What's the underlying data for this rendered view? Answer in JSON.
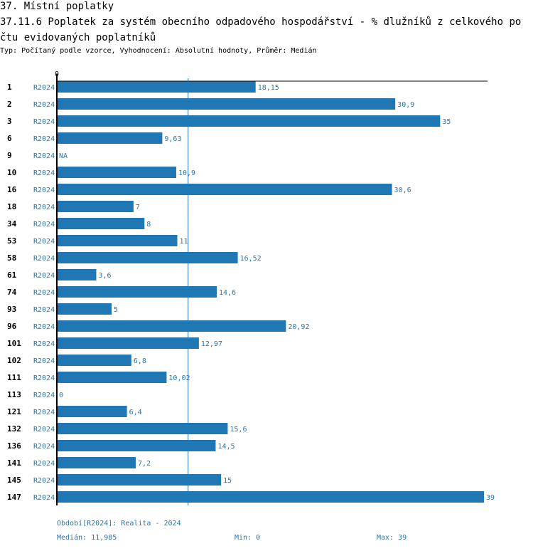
{
  "header": {
    "section": "37. Místní poplatky",
    "title": "37.11.6 Poplatek za systém obecního odpadového hospodářství  - % dlužníků z celkového počtu evidovaných poplatníků",
    "subtitle": "Typ: Počítaný podle vzorce, Vyhodnocení: Absolutní hodnoty, Průměr: Medián"
  },
  "chart_data": {
    "type": "bar",
    "orientation": "horizontal",
    "categories": [
      "1",
      "2",
      "3",
      "6",
      "9",
      "10",
      "16",
      "18",
      "34",
      "53",
      "58",
      "61",
      "74",
      "93",
      "96",
      "101",
      "102",
      "111",
      "113",
      "121",
      "132",
      "136",
      "141",
      "145",
      "147"
    ],
    "period": "R2024",
    "values": [
      18.15,
      30.9,
      35,
      9.63,
      null,
      10.9,
      30.6,
      7,
      8,
      11,
      16.52,
      3.6,
      14.6,
      5,
      20.92,
      12.97,
      6.8,
      10.02,
      0,
      6.4,
      15.6,
      14.5,
      7.2,
      15,
      39
    ],
    "value_labels": [
      "18,15",
      "30,9",
      "35",
      "9,63",
      "NA",
      "10,9",
      "30,6",
      "7",
      "8",
      "11",
      "16,52",
      "3,6",
      "14,6",
      "5",
      "20,92",
      "12,97",
      "6,8",
      "10,02",
      "0",
      "6,4",
      "15,6",
      "14,5",
      "7,2",
      "15",
      "39"
    ],
    "xlim": [
      0,
      39.4
    ],
    "axis_tick_label": "0",
    "median": 11.985,
    "bar_color": "#1f77b4",
    "label_color": "#1f77b4"
  },
  "footer": {
    "period": "Období[R2024]: Realita - 2024",
    "median": "Medián: 11,985",
    "min": "Min: 0",
    "max": "Max: 39"
  }
}
